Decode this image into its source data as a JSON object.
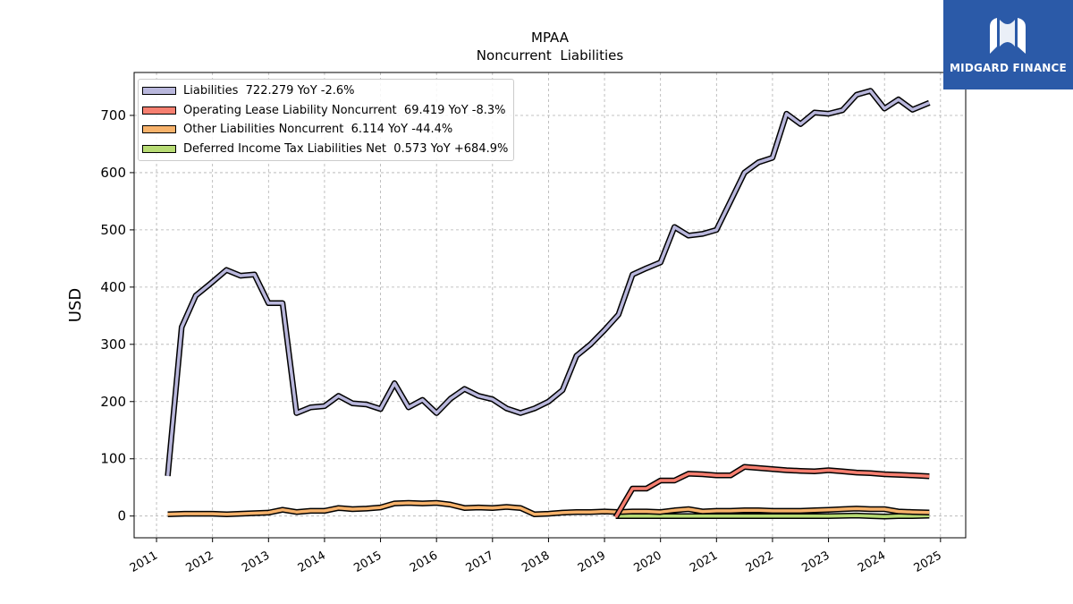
{
  "logo": {
    "text": "MIDGARD FINANCE",
    "icon": "midgard-logo-mark"
  },
  "chart_data": {
    "type": "line",
    "title": "MPAA",
    "subtitle": "Noncurrent  Liabilities",
    "ylabel": "USD",
    "xlabel": "",
    "xlim": [
      2010.6,
      2025.45
    ],
    "ylim": [
      -38,
      775
    ],
    "xticks": [
      "2011",
      "2012",
      "2013",
      "2014",
      "2015",
      "2016",
      "2017",
      "2018",
      "2019",
      "2020",
      "2021",
      "2022",
      "2023",
      "2024",
      "2025"
    ],
    "yticks": [
      0,
      100,
      200,
      300,
      400,
      500,
      600,
      700
    ],
    "grid": true,
    "legend_position": "top-left",
    "series": [
      {
        "name": "Liabilities  722.279 YoY -2.6%",
        "color": "#b9b7dc",
        "points": [
          [
            2011.2,
            70
          ],
          [
            2011.45,
            330
          ],
          [
            2011.7,
            385
          ],
          [
            2011.95,
            405
          ],
          [
            2012.25,
            430
          ],
          [
            2012.5,
            420
          ],
          [
            2012.75,
            422
          ],
          [
            2013.0,
            372
          ],
          [
            2013.25,
            372
          ],
          [
            2013.5,
            180
          ],
          [
            2013.75,
            190
          ],
          [
            2014.0,
            192
          ],
          [
            2014.25,
            210
          ],
          [
            2014.5,
            197
          ],
          [
            2014.75,
            195
          ],
          [
            2015.0,
            187
          ],
          [
            2015.25,
            232
          ],
          [
            2015.5,
            190
          ],
          [
            2015.75,
            203
          ],
          [
            2016.0,
            180
          ],
          [
            2016.25,
            205
          ],
          [
            2016.5,
            222
          ],
          [
            2016.75,
            210
          ],
          [
            2017.0,
            204
          ],
          [
            2017.25,
            188
          ],
          [
            2017.5,
            180
          ],
          [
            2017.75,
            188
          ],
          [
            2018.0,
            200
          ],
          [
            2018.25,
            220
          ],
          [
            2018.5,
            280
          ],
          [
            2018.75,
            300
          ],
          [
            2019.0,
            325
          ],
          [
            2019.25,
            352
          ],
          [
            2019.5,
            422
          ],
          [
            2019.75,
            433
          ],
          [
            2020.0,
            443
          ],
          [
            2020.25,
            505
          ],
          [
            2020.5,
            490
          ],
          [
            2020.75,
            493
          ],
          [
            2021.0,
            500
          ],
          [
            2021.25,
            550
          ],
          [
            2021.5,
            600
          ],
          [
            2021.75,
            618
          ],
          [
            2022.0,
            626
          ],
          [
            2022.25,
            703
          ],
          [
            2022.5,
            685
          ],
          [
            2022.75,
            705
          ],
          [
            2023.0,
            703
          ],
          [
            2023.25,
            709
          ],
          [
            2023.5,
            736
          ],
          [
            2023.75,
            743
          ],
          [
            2024.0,
            712
          ],
          [
            2024.25,
            728
          ],
          [
            2024.5,
            710
          ],
          [
            2024.8,
            722
          ]
        ]
      },
      {
        "name": "Operating Lease Liability Noncurrent  69.419 YoY -8.3%",
        "color": "#f67f70",
        "points": [
          [
            2019.2,
            -2
          ],
          [
            2019.5,
            48
          ],
          [
            2019.75,
            48
          ],
          [
            2020.0,
            62
          ],
          [
            2020.25,
            62
          ],
          [
            2020.5,
            74
          ],
          [
            2020.75,
            73
          ],
          [
            2021.0,
            71
          ],
          [
            2021.25,
            71
          ],
          [
            2021.5,
            86
          ],
          [
            2021.75,
            84
          ],
          [
            2022.0,
            82
          ],
          [
            2022.25,
            80
          ],
          [
            2022.5,
            79
          ],
          [
            2022.75,
            78
          ],
          [
            2023.0,
            80
          ],
          [
            2023.25,
            78
          ],
          [
            2023.5,
            76
          ],
          [
            2023.75,
            75
          ],
          [
            2024.0,
            73
          ],
          [
            2024.25,
            72
          ],
          [
            2024.5,
            71
          ],
          [
            2024.8,
            69.4
          ]
        ]
      },
      {
        "name": "Other Liabilities Noncurrent  6.114 YoY -44.4%",
        "color": "#f7b26b",
        "points": [
          [
            2011.2,
            3
          ],
          [
            2011.5,
            4
          ],
          [
            2011.75,
            4
          ],
          [
            2012.0,
            4
          ],
          [
            2012.25,
            3
          ],
          [
            2012.5,
            4
          ],
          [
            2012.75,
            5
          ],
          [
            2013.0,
            6
          ],
          [
            2013.25,
            11
          ],
          [
            2013.5,
            7
          ],
          [
            2013.75,
            9
          ],
          [
            2014.0,
            9
          ],
          [
            2014.25,
            14
          ],
          [
            2014.5,
            12
          ],
          [
            2014.75,
            13
          ],
          [
            2015.0,
            15
          ],
          [
            2015.25,
            22
          ],
          [
            2015.5,
            23
          ],
          [
            2015.75,
            22
          ],
          [
            2016.0,
            23
          ],
          [
            2016.25,
            20
          ],
          [
            2016.5,
            14
          ],
          [
            2016.75,
            15
          ],
          [
            2017.0,
            14
          ],
          [
            2017.25,
            16
          ],
          [
            2017.5,
            14
          ],
          [
            2017.75,
            3
          ],
          [
            2018.0,
            4
          ],
          [
            2018.25,
            6
          ],
          [
            2018.5,
            7
          ],
          [
            2018.75,
            7
          ],
          [
            2019.0,
            8
          ],
          [
            2019.25,
            7
          ],
          [
            2019.5,
            8
          ],
          [
            2019.75,
            8
          ],
          [
            2020.0,
            7
          ],
          [
            2020.25,
            10
          ],
          [
            2020.5,
            12
          ],
          [
            2020.75,
            8
          ],
          [
            2021.0,
            9
          ],
          [
            2021.25,
            9
          ],
          [
            2021.5,
            10
          ],
          [
            2021.75,
            10
          ],
          [
            2022.0,
            9
          ],
          [
            2022.25,
            9
          ],
          [
            2022.5,
            9
          ],
          [
            2022.75,
            10
          ],
          [
            2023.0,
            11
          ],
          [
            2023.25,
            12
          ],
          [
            2023.5,
            13
          ],
          [
            2023.75,
            12
          ],
          [
            2024.0,
            12
          ],
          [
            2024.25,
            8
          ],
          [
            2024.5,
            7
          ],
          [
            2024.8,
            6.1
          ]
        ]
      },
      {
        "name": "Deferred Income Tax Liabilities Net  0.573 YoY +684.9%",
        "color": "#b7db74",
        "points": [
          [
            2019.2,
            0
          ],
          [
            2019.5,
            0
          ],
          [
            2020.0,
            0
          ],
          [
            2020.5,
            0
          ],
          [
            2021.0,
            0
          ],
          [
            2021.5,
            0
          ],
          [
            2022.0,
            0
          ],
          [
            2022.5,
            0
          ],
          [
            2023.0,
            0
          ],
          [
            2023.5,
            1
          ],
          [
            2023.75,
            0
          ],
          [
            2024.0,
            -1
          ],
          [
            2024.25,
            0
          ],
          [
            2024.5,
            0
          ],
          [
            2024.8,
            0.6
          ]
        ]
      }
    ]
  }
}
